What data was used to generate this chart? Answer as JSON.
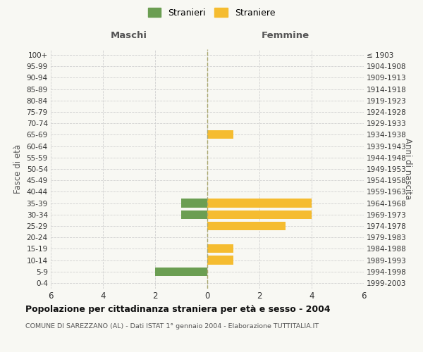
{
  "age_groups": [
    "0-4",
    "5-9",
    "10-14",
    "15-19",
    "20-24",
    "25-29",
    "30-34",
    "35-39",
    "40-44",
    "45-49",
    "50-54",
    "55-59",
    "60-64",
    "65-69",
    "70-74",
    "75-79",
    "80-84",
    "85-89",
    "90-94",
    "95-99",
    "100+"
  ],
  "birth_years": [
    "1999-2003",
    "1994-1998",
    "1989-1993",
    "1984-1988",
    "1979-1983",
    "1974-1978",
    "1969-1973",
    "1964-1968",
    "1959-1963",
    "1954-1958",
    "1949-1953",
    "1944-1948",
    "1939-1943",
    "1934-1938",
    "1929-1933",
    "1924-1928",
    "1919-1923",
    "1914-1918",
    "1909-1913",
    "1904-1908",
    "≤ 1903"
  ],
  "males": [
    0,
    2,
    0,
    0,
    0,
    0,
    1,
    1,
    0,
    0,
    0,
    0,
    0,
    0,
    0,
    0,
    0,
    0,
    0,
    0,
    0
  ],
  "females": [
    0,
    0,
    1,
    1,
    0,
    3,
    4,
    4,
    0,
    0,
    0,
    0,
    0,
    1,
    0,
    0,
    0,
    0,
    0,
    0,
    0
  ],
  "male_color": "#6b9e52",
  "female_color": "#f5bc30",
  "xlim": 6,
  "xlabel_left": "Maschi",
  "xlabel_right": "Femmine",
  "ylabel_left": "Fasce di età",
  "ylabel_right": "Anni di nascita",
  "legend_male": "Stranieri",
  "legend_female": "Straniere",
  "title": "Popolazione per cittadinanza straniera per età e sesso - 2004",
  "subtitle": "COMUNE DI SAREZZANO (AL) - Dati ISTAT 1° gennaio 2004 - Elaborazione TUTTITALIA.IT",
  "bg_color": "#f8f8f3",
  "grid_color": "#d0d0d0",
  "bar_height": 0.75
}
